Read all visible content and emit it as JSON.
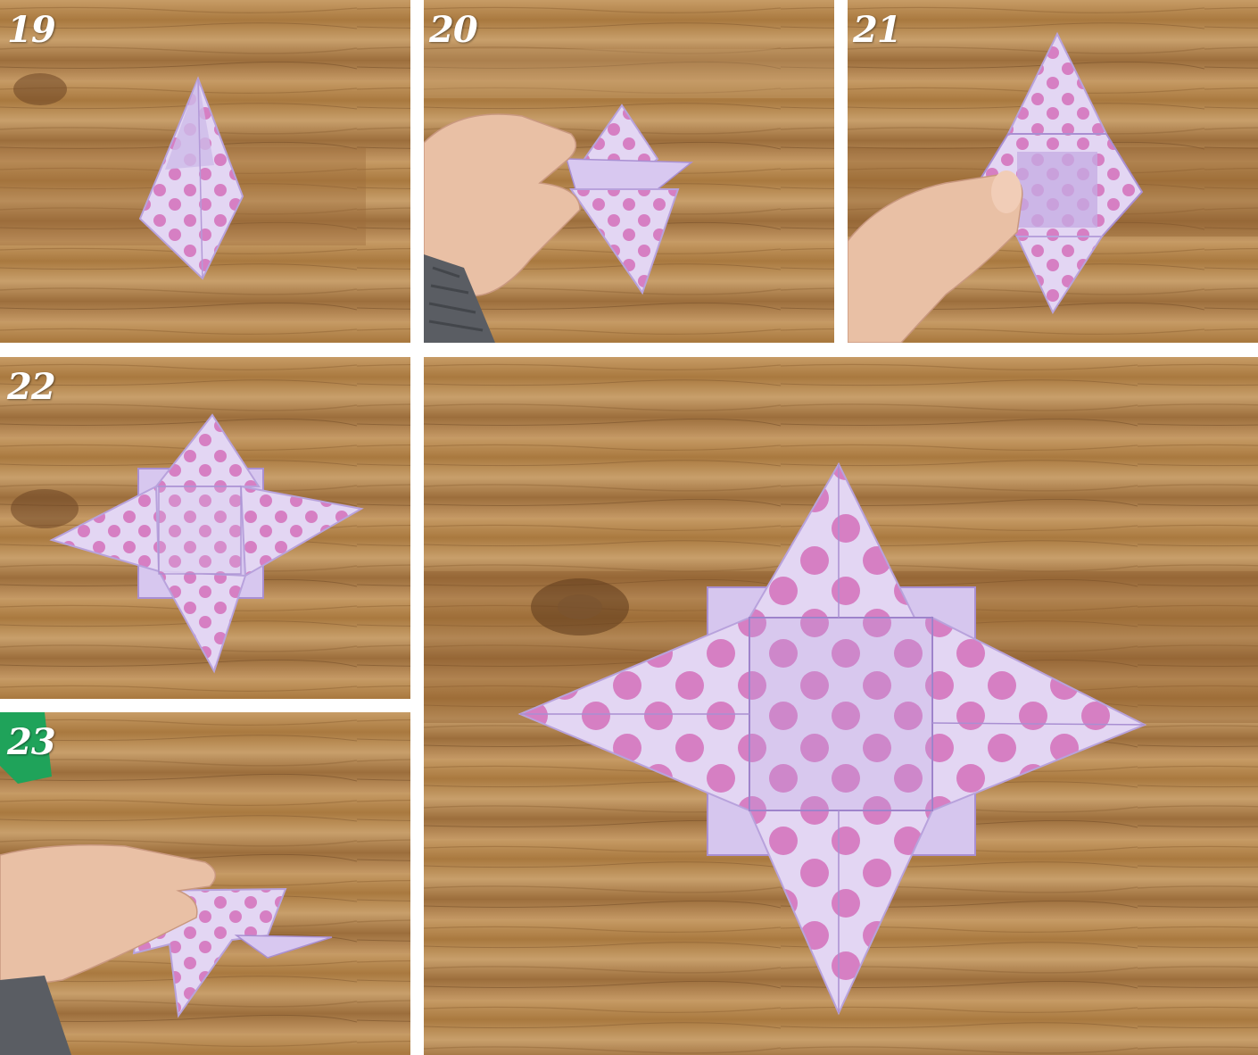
{
  "panels": [
    {
      "id": "19",
      "label": "19",
      "caption": "19"
    },
    {
      "id": "20",
      "label": "20",
      "caption": "20"
    },
    {
      "id": "21",
      "label": "21",
      "caption": "21"
    },
    {
      "id": "22",
      "label": "22",
      "caption": "22"
    },
    {
      "id": "23",
      "label": "23",
      "caption": "23"
    },
    {
      "id": "final",
      "label": ""
    }
  ],
  "colors": {
    "wood_light": "#c59a63",
    "wood_mid": "#a87b47",
    "wood_dark": "#7a5430",
    "paper": "#e3d6f3",
    "paper_shadow": "#c9b6e6",
    "dots": "#d67fc3",
    "skin": "#e9c0a5",
    "sleeve": "#5a5d63",
    "green": "#1fa35a",
    "step_label": "#ffffff"
  }
}
